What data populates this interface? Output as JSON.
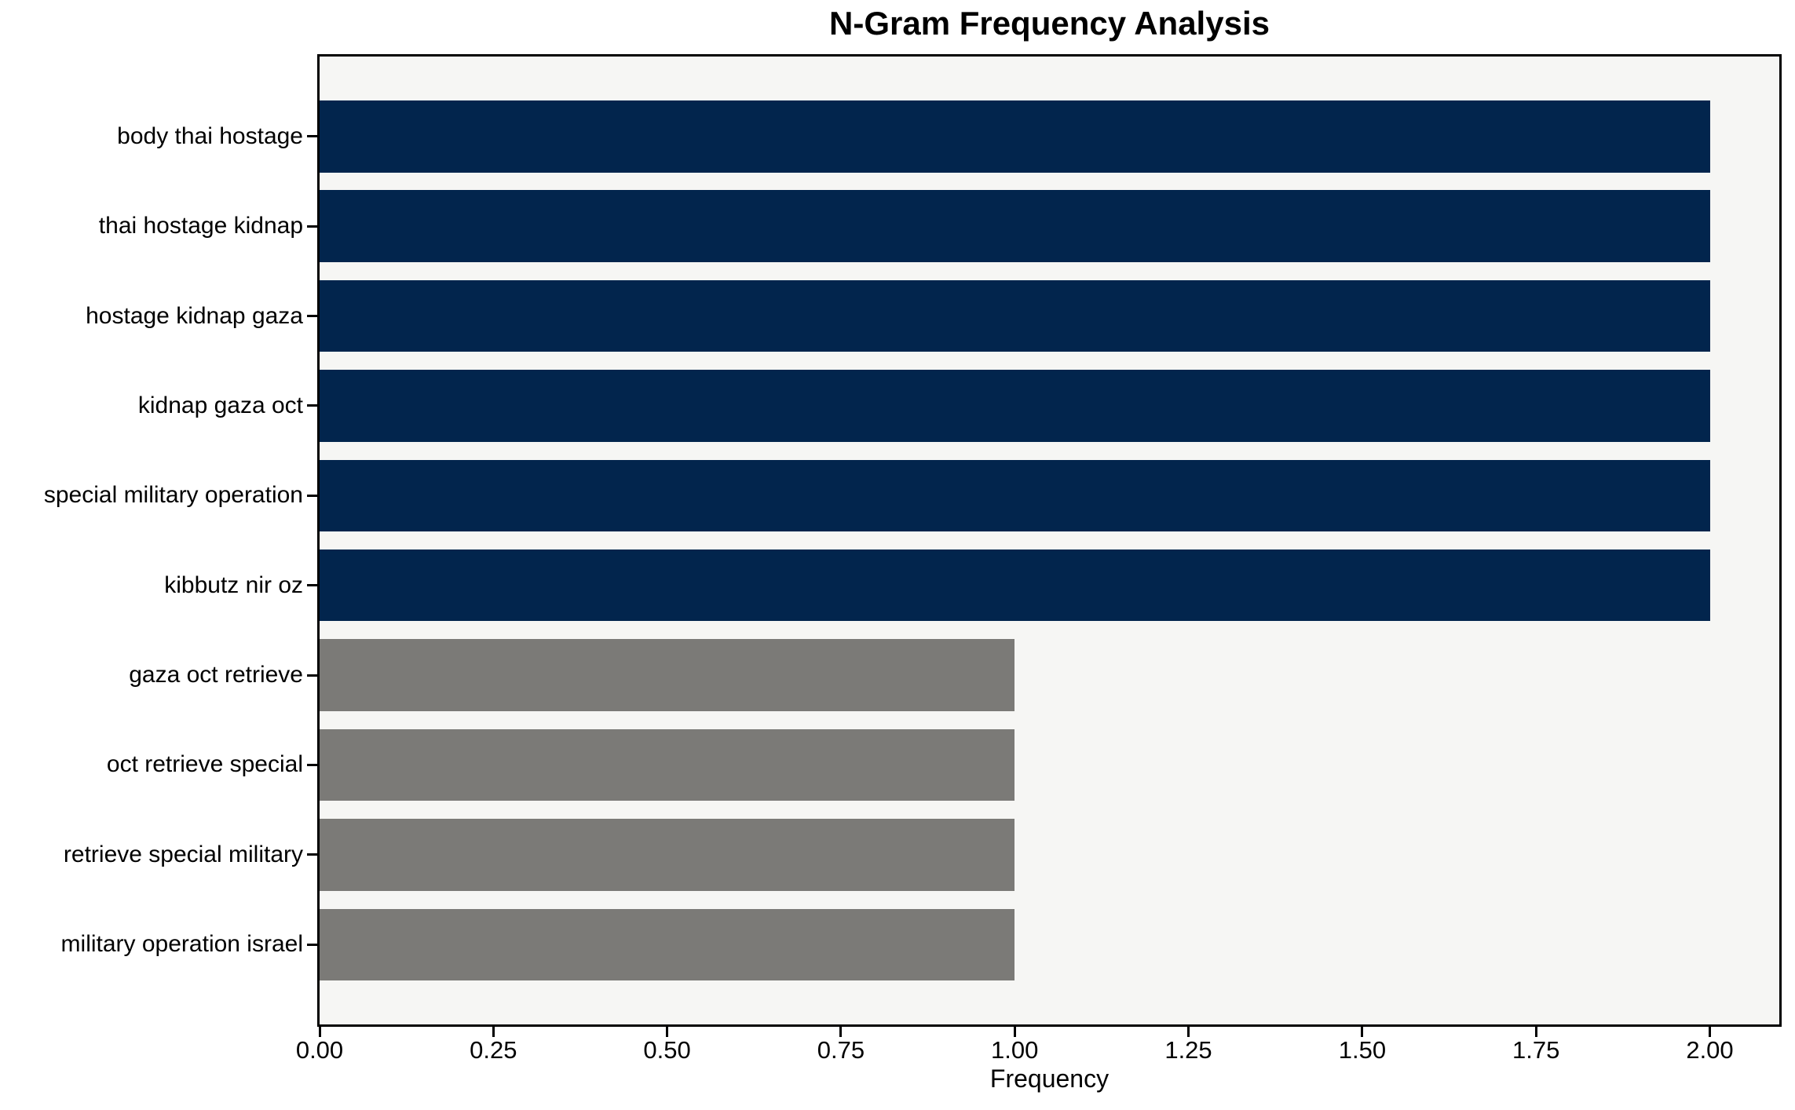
{
  "chart_data": {
    "type": "bar",
    "orientation": "horizontal",
    "title": "N-Gram Frequency Analysis",
    "xlabel": "Frequency",
    "ylabel": "",
    "categories": [
      "body thai hostage",
      "thai hostage kidnap",
      "hostage kidnap gaza",
      "kidnap gaza oct",
      "special military operation",
      "kibbutz nir oz",
      "gaza oct retrieve",
      "oct retrieve special",
      "retrieve special military",
      "military operation israel"
    ],
    "values": [
      2,
      2,
      2,
      2,
      2,
      2,
      1,
      1,
      1,
      1
    ],
    "bar_colors": [
      "#02254d",
      "#02254d",
      "#02254d",
      "#02254d",
      "#02254d",
      "#02254d",
      "#7b7a77",
      "#7b7a77",
      "#7b7a77",
      "#7b7a77"
    ],
    "xlim": [
      0,
      2.1
    ],
    "xticks": [
      0,
      0.25,
      0.5,
      0.75,
      1.0,
      1.25,
      1.5,
      1.75,
      2.0
    ],
    "xtick_labels": [
      "0.00",
      "0.25",
      "0.50",
      "0.75",
      "1.00",
      "1.25",
      "1.50",
      "1.75",
      "2.00"
    ],
    "grid": false,
    "legend": null,
    "plot_background": "#f6f6f4",
    "figure_background": "#ffffff",
    "axis_color": "#000000"
  }
}
